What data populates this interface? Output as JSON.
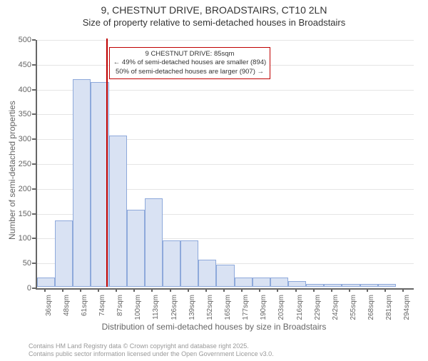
{
  "title": {
    "main": "9, CHESTNUT DRIVE, BROADSTAIRS, CT10 2LN",
    "sub": "Size of property relative to semi-detached houses in Broadstairs"
  },
  "chart": {
    "type": "histogram",
    "y_axis": {
      "label": "Number of semi-detached properties",
      "min": 0,
      "max": 500,
      "tick_step": 50,
      "ticks": [
        0,
        50,
        100,
        150,
        200,
        250,
        300,
        350,
        400,
        450,
        500
      ],
      "label_fontsize": 12,
      "tick_fontsize": 11
    },
    "x_axis": {
      "label": "Distribution of semi-detached houses by size in Broadstairs",
      "categories": [
        "36sqm",
        "48sqm",
        "61sqm",
        "74sqm",
        "87sqm",
        "100sqm",
        "113sqm",
        "126sqm",
        "139sqm",
        "152sqm",
        "165sqm",
        "177sqm",
        "190sqm",
        "203sqm",
        "216sqm",
        "229sqm",
        "242sqm",
        "255sqm",
        "268sqm",
        "281sqm",
        "294sqm"
      ],
      "label_fontsize": 12,
      "tick_fontsize": 10
    },
    "bars": {
      "values": [
        18,
        133,
        418,
        413,
        305,
        155,
        178,
        93,
        93,
        55,
        45,
        18,
        18,
        18,
        12,
        6,
        6,
        6,
        6,
        6,
        0
      ],
      "fill_color": "#d9e2f3",
      "border_color": "#8ea9db",
      "bar_width_ratio": 1.0
    },
    "highlight": {
      "position_index": 3.85,
      "color": "#c00000",
      "callout_lines": [
        "9 CHESTNUT DRIVE: 85sqm",
        "← 49% of semi-detached houses are smaller (894)",
        "50% of semi-detached houses are larger (907) →"
      ]
    },
    "background_color": "#ffffff",
    "grid_color": "#e5e5e5",
    "axis_color": "#666666"
  },
  "footer": {
    "line1": "Contains HM Land Registry data © Crown copyright and database right 2025.",
    "line2": "Contains public sector information licensed under the Open Government Licence v3.0."
  }
}
